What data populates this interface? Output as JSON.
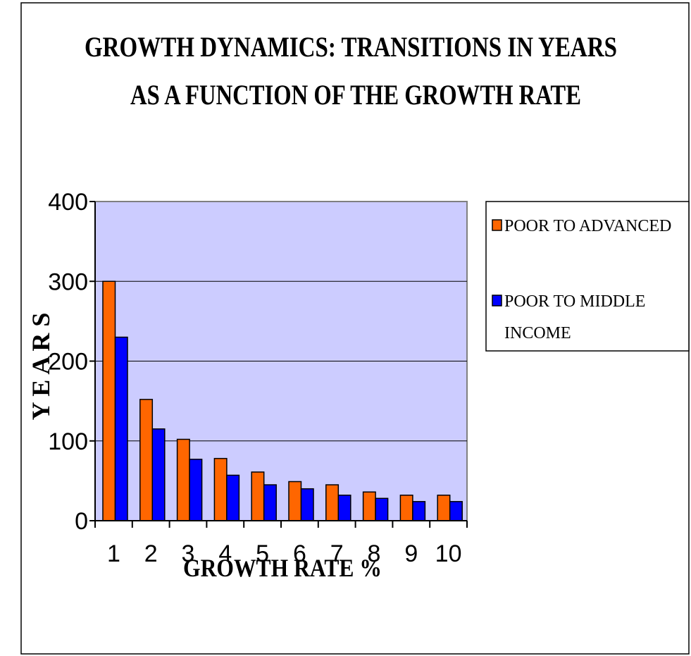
{
  "chart_data": {
    "type": "bar",
    "title_lines": [
      "GROWTH  DYNAMICS: TRANSITIONS IN YEARS",
      "AS A FUNCTION OF THE GROWTH RATE"
    ],
    "xlabel": "GROWTH RATE %",
    "ylabel": "Y E A R S",
    "categories": [
      "1",
      "2",
      "3",
      "4",
      "5",
      "6",
      "7",
      "8",
      "9",
      "10"
    ],
    "series": [
      {
        "name": "POOR TO ADVANCED",
        "color": "#ff6600",
        "values": [
          300,
          152,
          102,
          78,
          61,
          49,
          45,
          36,
          32,
          32
        ]
      },
      {
        "name": "POOR TO MIDDLE INCOME",
        "legend_lines": [
          "POOR TO MIDDLE",
          "INCOME"
        ],
        "color": "#0000ff",
        "values": [
          230,
          115,
          77,
          57,
          45,
          40,
          32,
          28,
          24,
          24
        ]
      }
    ],
    "ylim": [
      0,
      400
    ],
    "yticks": [
      0,
      100,
      200,
      300,
      400
    ],
    "grid": true,
    "plot_background": "#ccccff",
    "legend_position": "right"
  }
}
